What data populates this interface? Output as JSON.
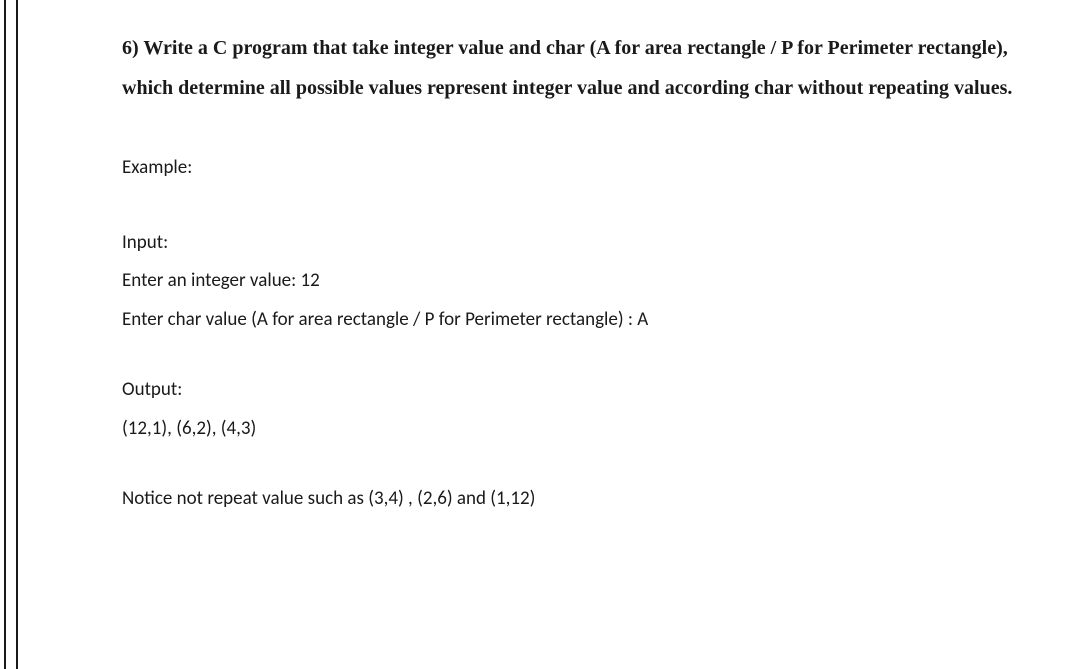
{
  "question": {
    "number": "6)",
    "text": "Write a C program that take integer value and char (A for area rectangle / P for Perimeter rectangle), which determine all possible values represent integer value and according char without repeating values."
  },
  "example_label": "Example:",
  "input": {
    "label": "Input:",
    "line1": "Enter an integer value: 12",
    "line2": "Enter char value (A for area rectangle / P for Perimeter rectangle) : A"
  },
  "output": {
    "label": "Output:",
    "values": "(12,1), (6,2), (4,3)"
  },
  "notice": "Notice not repeat value such as (3,4) , (2,6) and (1,12)",
  "colors": {
    "text": "#1a1a1a",
    "background": "#ffffff",
    "rule": "#1a1a1a"
  },
  "typography": {
    "bold_font": "Times New Roman",
    "body_font": "Calibri",
    "bold_size_pt": 15,
    "body_size_pt": 14
  }
}
